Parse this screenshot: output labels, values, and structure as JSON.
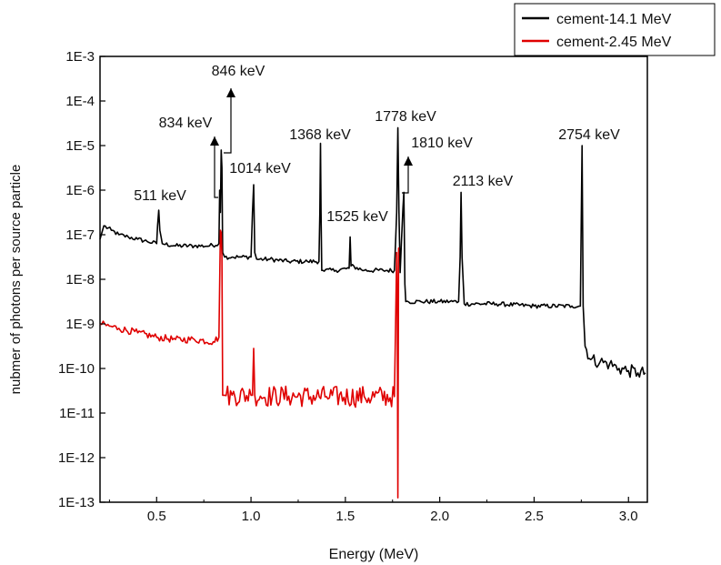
{
  "chart_data": {
    "type": "line",
    "title": "",
    "xlabel": "Energy (MeV)",
    "ylabel": "nubmer of photons per source particle",
    "xlim": [
      0.2,
      3.1
    ],
    "ylim_exponent": [
      -13,
      -3
    ],
    "log_y": true,
    "grid": false,
    "legend_position": "top-right",
    "x_ticks": [
      {
        "value": 0.5,
        "label": "0.5"
      },
      {
        "value": 1.0,
        "label": "1.0"
      },
      {
        "value": 1.5,
        "label": "1.5"
      },
      {
        "value": 2.0,
        "label": "2.0"
      },
      {
        "value": 2.5,
        "label": "2.5"
      },
      {
        "value": 3.0,
        "label": "3.0"
      }
    ],
    "y_ticks": [
      {
        "exponent": -3,
        "label": "1E-3"
      },
      {
        "exponent": -4,
        "label": "1E-4"
      },
      {
        "exponent": -5,
        "label": "1E-5"
      },
      {
        "exponent": -6,
        "label": "1E-6"
      },
      {
        "exponent": -7,
        "label": "1E-7"
      },
      {
        "exponent": -8,
        "label": "1E-8"
      },
      {
        "exponent": -9,
        "label": "1E-9"
      },
      {
        "exponent": -10,
        "label": "1E-10"
      },
      {
        "exponent": -11,
        "label": "1E-11"
      },
      {
        "exponent": -12,
        "label": "1E-12"
      },
      {
        "exponent": -13,
        "label": "1E-13"
      }
    ],
    "series": [
      {
        "name": "cement-14.1 MeV",
        "color": "#000000",
        "noise_amplitude": 0.05,
        "x": [
          0.2,
          0.22,
          0.26,
          0.3,
          0.35,
          0.4,
          0.45,
          0.5,
          0.505,
          0.511,
          0.517,
          0.53,
          0.6,
          0.7,
          0.78,
          0.83,
          0.834,
          0.838,
          0.842,
          0.846,
          0.85,
          0.855,
          0.86,
          0.9,
          0.95,
          1.0,
          1.008,
          1.014,
          1.02,
          1.03,
          1.1,
          1.2,
          1.3,
          1.36,
          1.365,
          1.368,
          1.371,
          1.375,
          1.38,
          1.45,
          1.52,
          1.525,
          1.53,
          1.6,
          1.7,
          1.76,
          1.772,
          1.778,
          1.784,
          1.79,
          1.805,
          1.81,
          1.815,
          1.82,
          1.9,
          2.0,
          2.1,
          2.108,
          2.113,
          2.118,
          2.13,
          2.3,
          2.5,
          2.7,
          2.745,
          2.754,
          2.76,
          2.77,
          2.8,
          2.85,
          2.9,
          2.95,
          3.0,
          3.05,
          3.09
        ],
        "y_exponent": [
          -7.1,
          -6.8,
          -6.9,
          -7.0,
          -7.05,
          -7.1,
          -7.15,
          -7.2,
          -6.8,
          -6.45,
          -6.9,
          -7.2,
          -7.25,
          -7.25,
          -7.25,
          -7.2,
          -6.0,
          -6.5,
          -5.1,
          -5.5,
          -7.4,
          -7.45,
          -7.5,
          -7.5,
          -7.5,
          -7.5,
          -6.5,
          -5.88,
          -7.4,
          -7.55,
          -7.55,
          -7.6,
          -7.6,
          -7.6,
          -6.5,
          -4.95,
          -6.5,
          -7.8,
          -7.8,
          -7.8,
          -7.75,
          -7.05,
          -7.7,
          -7.8,
          -7.8,
          -7.8,
          -6.5,
          -4.6,
          -6.5,
          -7.85,
          -6.4,
          -6.05,
          -8.1,
          -8.5,
          -8.5,
          -8.5,
          -8.5,
          -7.5,
          -6.05,
          -7.5,
          -8.55,
          -8.55,
          -8.6,
          -8.6,
          -8.6,
          -5.0,
          -8.6,
          -9.5,
          -9.8,
          -9.85,
          -9.9,
          -10.0,
          -10.05,
          -10.1,
          -10.1
        ]
      },
      {
        "name": "cement-2.45 MeV",
        "color": "#e00000",
        "noise_amplitude": 0.08,
        "x": [
          0.2,
          0.25,
          0.3,
          0.4,
          0.5,
          0.6,
          0.7,
          0.8,
          0.83,
          0.838,
          0.842,
          0.846,
          0.85,
          0.86,
          0.9,
          1.0,
          1.008,
          1.014,
          1.02,
          1.05,
          1.2,
          1.4,
          1.6,
          1.76,
          1.772,
          1.775,
          1.778,
          1.782,
          1.786
        ],
        "y_exponent": [
          -9.0,
          -9.05,
          -9.1,
          -9.2,
          -9.3,
          -9.35,
          -9.35,
          -9.4,
          -9.3,
          -6.9,
          -6.95,
          -7.5,
          -10.6,
          -10.6,
          -10.6,
          -10.6,
          -10.6,
          -9.55,
          -10.6,
          -10.62,
          -10.62,
          -10.63,
          -10.63,
          -10.63,
          -7.4,
          -8.5,
          -12.9,
          -7.3,
          -7.3
        ]
      }
    ],
    "annotations": [
      {
        "label": "511 keV",
        "x": 0.511
      },
      {
        "label": "834 keV",
        "x": 0.834
      },
      {
        "label": "846 keV",
        "x": 0.846
      },
      {
        "label": "1014 keV",
        "x": 1.014
      },
      {
        "label": "1368 keV",
        "x": 1.368
      },
      {
        "label": "1525 keV",
        "x": 1.525
      },
      {
        "label": "1778 keV",
        "x": 1.778
      },
      {
        "label": "1810 keV",
        "x": 1.81
      },
      {
        "label": "2113 keV",
        "x": 2.113
      },
      {
        "label": "2754 keV",
        "x": 2.754
      }
    ]
  }
}
